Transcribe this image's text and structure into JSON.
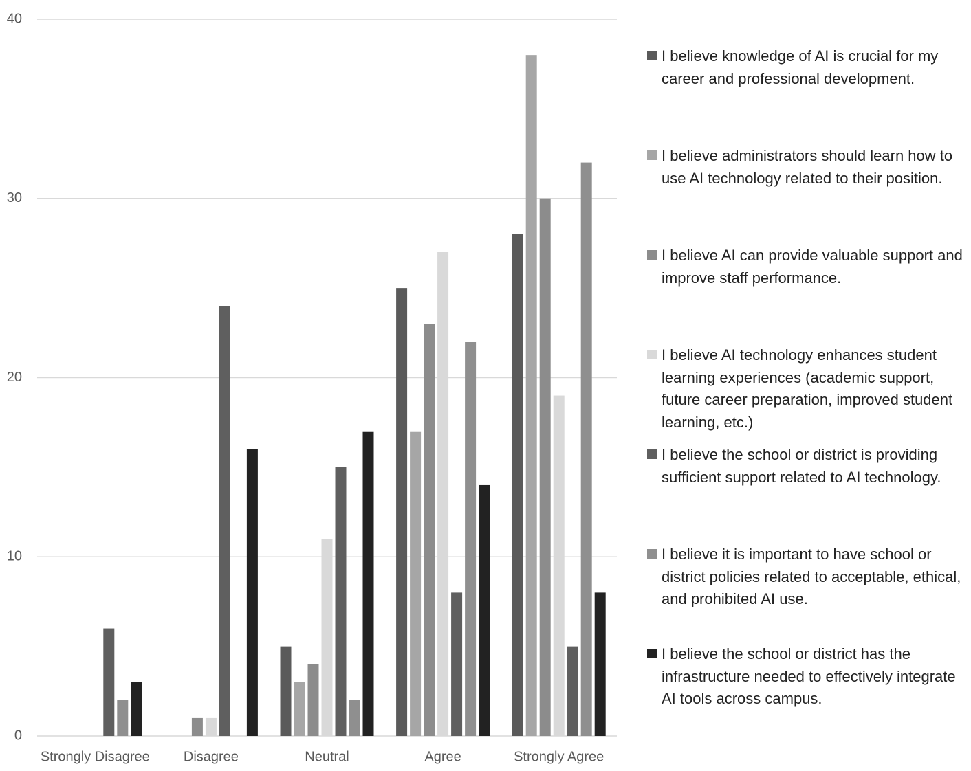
{
  "chart_data": {
    "type": "bar",
    "categories": [
      "Strongly Disagree",
      "Disagree",
      "Neutral",
      "Agree",
      "Strongly Agree"
    ],
    "series": [
      {
        "name": "I believe knowledge of AI is crucial for my career and professional development.",
        "color": "#5a5a5a",
        "values": [
          0,
          0,
          5,
          25,
          28
        ]
      },
      {
        "name": "I believe administrators should learn how to use AI technology related to their position.",
        "color": "#a6a6a6",
        "values": [
          0,
          0,
          3,
          17,
          38
        ]
      },
      {
        "name": "I believe AI can provide valuable support and improve staff performance.",
        "color": "#8c8c8c",
        "values": [
          0,
          1,
          4,
          23,
          30
        ]
      },
      {
        "name": "I believe AI technology enhances student learning experiences (academic support, future career preparation, improved student learning, etc.)",
        "color": "#d9d9d9",
        "values": [
          0,
          1,
          11,
          27,
          19
        ]
      },
      {
        "name": "I believe the school or district is providing sufficient support related to AI technology.",
        "color": "#5f5f5f",
        "values": [
          6,
          24,
          15,
          8,
          5
        ]
      },
      {
        "name": "I believe it is important to have school or district policies related to acceptable, ethical, and prohibited AI use.",
        "color": "#8f8f8f",
        "values": [
          2,
          0,
          2,
          22,
          32
        ]
      },
      {
        "name": "I believe the school or district has the infrastructure needed to effectively integrate AI tools across campus.",
        "color": "#222222",
        "values": [
          3,
          16,
          17,
          14,
          8
        ]
      }
    ],
    "ylim": [
      0,
      40
    ],
    "yticks": [
      0,
      10,
      20,
      30,
      40
    ],
    "grid": true,
    "legend": "right"
  }
}
